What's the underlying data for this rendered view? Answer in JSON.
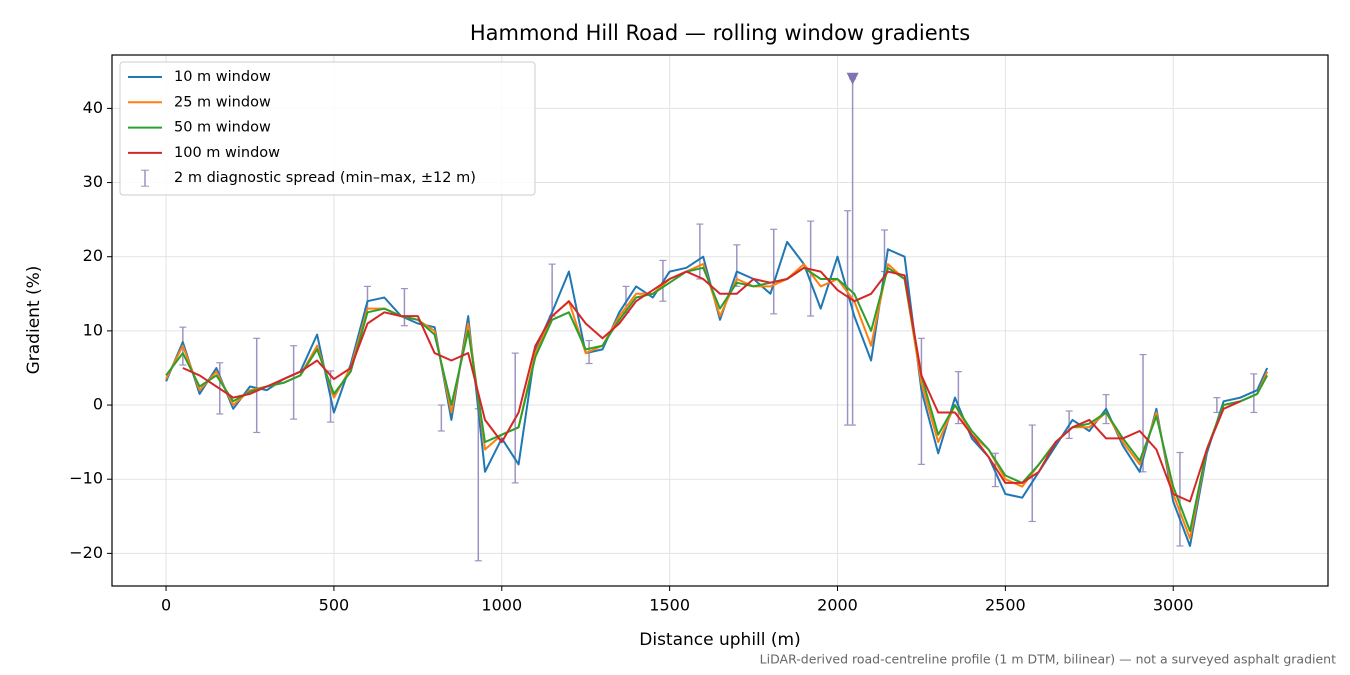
{
  "chart_data": {
    "type": "line",
    "title": "Hammond Hill Road — rolling window gradients",
    "x_label": "Distance uphill (m)",
    "y_label": "Gradient (%)",
    "footnote": "LiDAR-derived road-centreline profile (1 m DTM, bilinear) — not a surveyed asphalt gradient",
    "xlim": [
      -161,
      3461
    ],
    "ylim": [
      -24.4,
      47.2
    ],
    "xticks": [
      0,
      500,
      1000,
      1500,
      2000,
      2500,
      3000
    ],
    "yticks": [
      {
        "value": -20,
        "label": "−20"
      },
      {
        "value": -10,
        "label": "−10"
      },
      0,
      10,
      20,
      30,
      40
    ],
    "grid": true,
    "legend": "upper left",
    "x": [
      0,
      50,
      100,
      150,
      200,
      250,
      300,
      350,
      400,
      450,
      500,
      550,
      600,
      650,
      700,
      750,
      800,
      850,
      900,
      950,
      1000,
      1050,
      1100,
      1150,
      1200,
      1250,
      1300,
      1350,
      1400,
      1450,
      1500,
      1550,
      1600,
      1650,
      1700,
      1750,
      1800,
      1850,
      1900,
      1950,
      2000,
      2050,
      2100,
      2150,
      2200,
      2250,
      2300,
      2350,
      2400,
      2450,
      2500,
      2550,
      2600,
      2650,
      2700,
      2750,
      2800,
      2850,
      2900,
      2950,
      3000,
      3050,
      3100,
      3150,
      3200,
      3250,
      3280
    ],
    "series": [
      {
        "name": "10 m window",
        "color": "#1f77b4",
        "values": [
          3.2,
          8.5,
          1.5,
          5,
          -0.5,
          2.5,
          2,
          3.5,
          4.5,
          9.5,
          -1,
          5.5,
          14,
          14.5,
          12,
          11,
          10.5,
          -2,
          12,
          -9,
          -4.5,
          -8,
          7.5,
          12.5,
          18,
          7,
          7.5,
          12.5,
          16,
          14.5,
          18,
          18.5,
          20,
          11.5,
          18,
          17,
          15,
          22,
          19,
          13,
          20,
          12,
          6,
          21,
          20,
          2,
          -6.5,
          1,
          -4.5,
          -7,
          -12,
          -12.5,
          -9,
          -5.5,
          -2,
          -3.5,
          -0.5,
          -5.5,
          -9,
          -0.5,
          -13,
          -19,
          -6.5,
          0.5,
          1,
          2,
          5
        ]
      },
      {
        "name": "25 m window",
        "color": "#ff7f0e",
        "values": [
          3.5,
          8,
          2,
          4.5,
          0,
          2,
          2.5,
          3,
          4,
          8,
          1,
          5,
          13,
          13,
          12,
          11.5,
          10,
          -1,
          11,
          -6,
          -4,
          -3,
          7,
          12,
          14,
          7,
          8,
          12,
          15,
          15,
          17,
          18,
          19,
          12,
          17,
          16,
          16,
          17,
          19,
          16,
          17,
          14,
          8,
          19,
          17,
          3,
          -5,
          0,
          -4,
          -6,
          -10,
          -11,
          -8,
          -5,
          -3,
          -3,
          -1,
          -5,
          -8,
          -1,
          -12,
          -18,
          -6,
          0,
          0.5,
          1.5,
          4.5
        ]
      },
      {
        "name": "50 m window",
        "color": "#2ca02c",
        "values": [
          4,
          7,
          2.5,
          4,
          0.5,
          1.8,
          2.5,
          3,
          4,
          7.5,
          1.5,
          4.5,
          12.5,
          13,
          12,
          11.5,
          9.5,
          0,
          10,
          -5,
          -4,
          -3,
          6.5,
          11.5,
          12.5,
          7.5,
          8,
          11.5,
          14.5,
          15,
          16.5,
          18,
          18.5,
          13,
          16.5,
          16,
          16.5,
          17,
          18.5,
          17,
          17,
          15,
          10,
          18.5,
          17,
          4,
          -4,
          0,
          -3.5,
          -6,
          -9.5,
          -10.5,
          -8,
          -5,
          -3,
          -2.5,
          -1,
          -4.5,
          -7.5,
          -1.5,
          -11,
          -17,
          -6,
          0,
          0.5,
          1.5,
          4
        ]
      },
      {
        "name": "100 m window",
        "color": "#d62728",
        "values": [
          null,
          5,
          4,
          2.5,
          1,
          1.5,
          2.5,
          3.5,
          4.5,
          6,
          3.5,
          5,
          11,
          12.5,
          12,
          12,
          7,
          6,
          7,
          -2,
          -5,
          -1,
          8,
          12,
          14,
          11,
          9,
          11,
          14,
          15.5,
          17,
          18,
          17,
          15,
          15,
          17,
          16.5,
          17,
          18.5,
          18,
          15.5,
          14,
          15,
          18,
          17.5,
          4,
          -1,
          -1,
          -4,
          -7,
          -10.5,
          -10.5,
          -9,
          -5,
          -3,
          -2,
          -4.5,
          -4.5,
          -3.5,
          -6,
          -12,
          -13,
          -6,
          -0.5,
          0.5,
          null,
          null
        ]
      }
    ],
    "errorbars": {
      "name": "2 m diagnostic spread (min–max, ±12 m)",
      "color": "#9d93c2",
      "x": [
        50,
        160,
        270,
        380,
        490,
        600,
        710,
        820,
        930,
        1040,
        1150,
        1260,
        1370,
        1480,
        1590,
        1700,
        1810,
        1920,
        2030,
        2140,
        2250,
        2360,
        2470,
        2580,
        2690,
        2800,
        2910,
        3020,
        3130,
        3240,
        2045
      ],
      "max": [
        10.5,
        5.7,
        9,
        8,
        4.6,
        16,
        15.7,
        0,
        -0.5,
        7,
        19,
        8.7,
        16,
        19.5,
        24.4,
        21.6,
        23.7,
        24.8,
        26.2,
        23.6,
        9,
        4.5,
        -6.5,
        -2.7,
        -0.8,
        1.4,
        6.8,
        -6.4,
        1,
        4.2,
        44
      ],
      "min": [
        5.4,
        -1.2,
        -3.7,
        -1.9,
        -2.3,
        13,
        10.7,
        -3.5,
        -21,
        -10.5,
        12,
        5.6,
        12.5,
        14,
        17,
        16,
        12.3,
        12,
        -2.7,
        18,
        -8,
        -2.5,
        -11,
        -15.7,
        -4.5,
        -2.5,
        -9,
        -19,
        -1,
        -1,
        -2.7
      ]
    },
    "clip_marker": {
      "x": 2045,
      "y": 44,
      "color": "#8172b2"
    }
  }
}
